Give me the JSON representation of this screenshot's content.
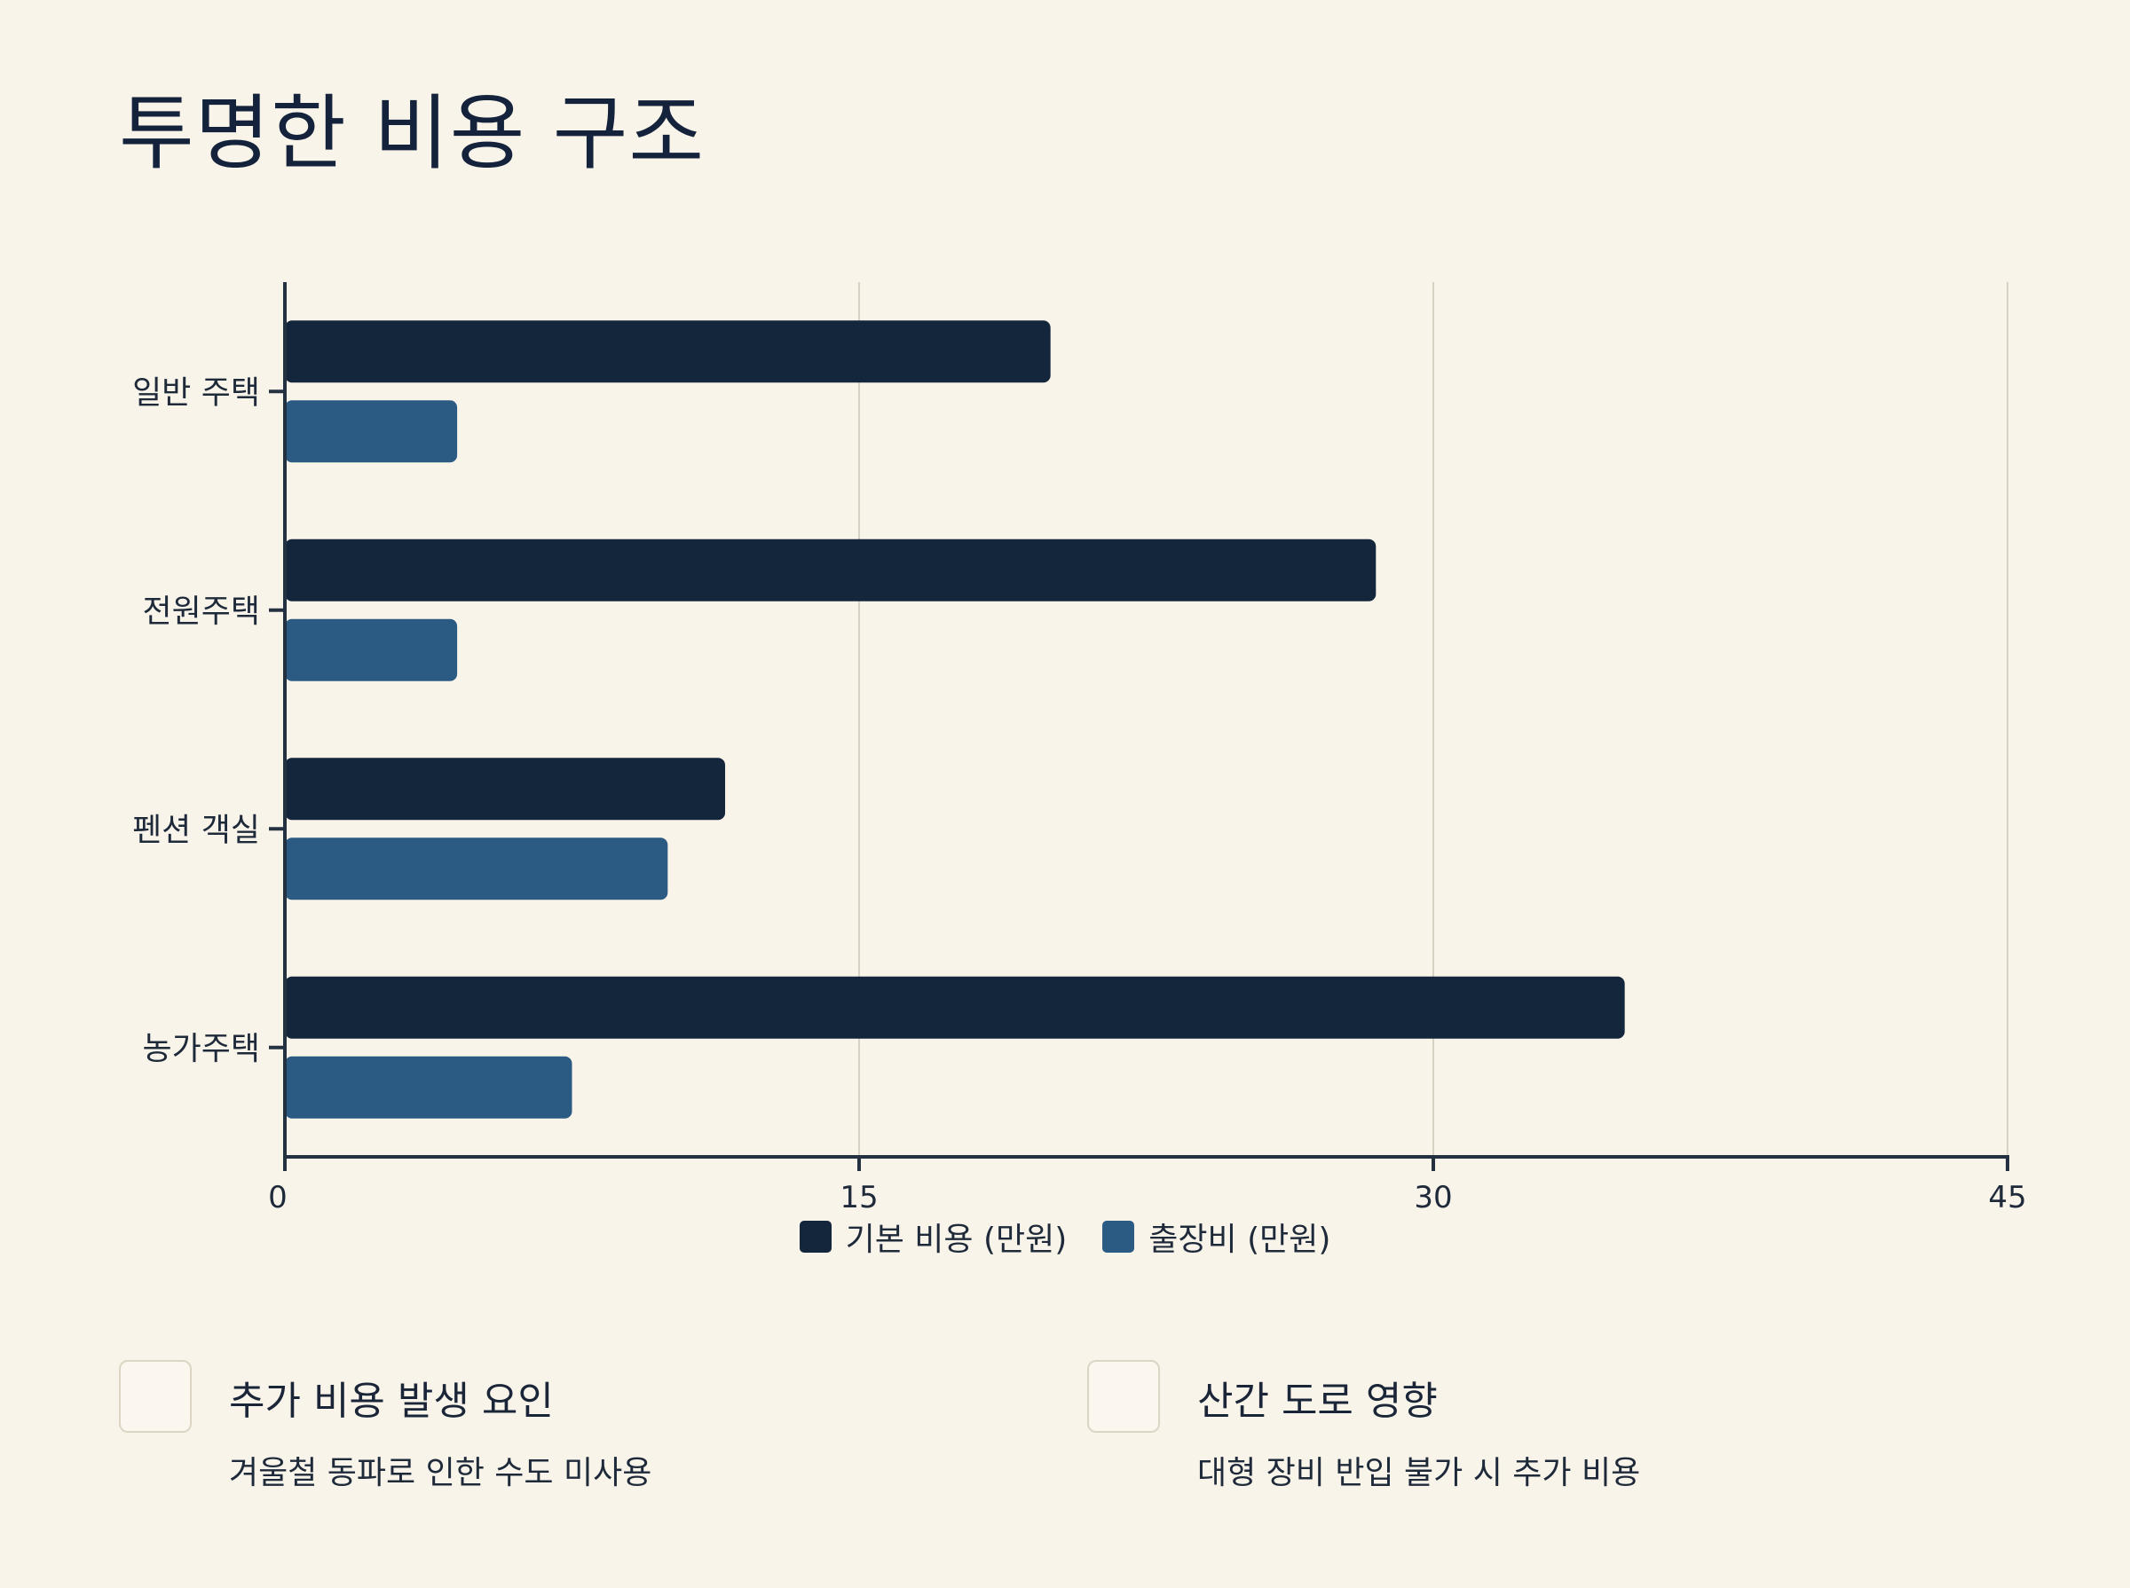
{
  "page": {
    "title": "투명한 비용 구조"
  },
  "colors": {
    "background": "#f9f4ea",
    "base": "#14263b",
    "travel": "#2b5b83",
    "axis": "#243140",
    "grid": "#d6d2c4"
  },
  "chart_data": {
    "type": "bar",
    "orientation": "horizontal",
    "categories": [
      "일반 주택",
      "전원주택",
      "펜션 객실",
      "농가주택"
    ],
    "series": [
      {
        "name": "기본 비용 (만원)",
        "color": "#14263b",
        "values": [
          20,
          28.5,
          11.5,
          35
        ]
      },
      {
        "name": "출장비 (만원)",
        "color": "#2b5b83",
        "values": [
          4.5,
          4.5,
          10,
          7.5
        ]
      }
    ],
    "xlim": [
      0,
      45
    ],
    "xticks": [
      "0",
      "15",
      "30",
      "45"
    ],
    "grid": true,
    "legend_position": "bottom"
  },
  "notes": [
    {
      "title": "추가 비용 발생 요인",
      "desc": "겨울철 동파로 인한 수도 미사용",
      "icon": "note-icon"
    },
    {
      "title": "산간 도로 영향",
      "desc": "대형 장비 반입 불가 시 추가 비용",
      "icon": "note-icon"
    }
  ]
}
